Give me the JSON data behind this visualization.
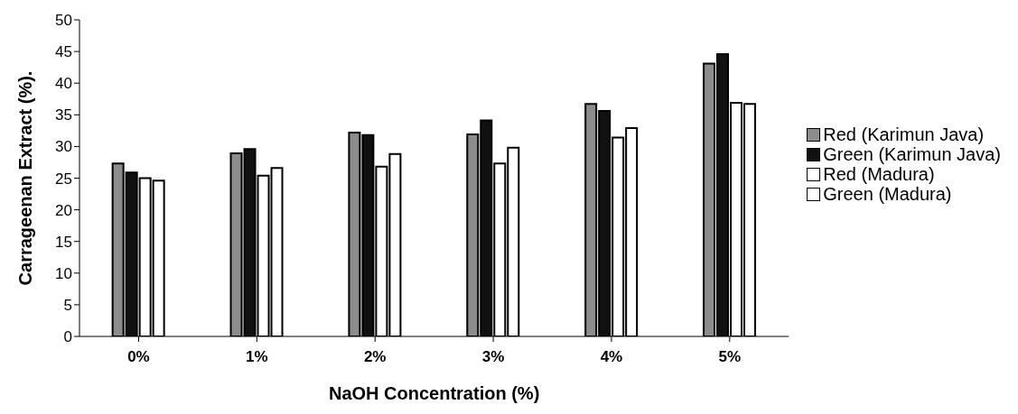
{
  "chart_data": {
    "type": "bar",
    "xlabel": "NaOH Concentration (%)",
    "ylabel": "Carrageenan Extract  (%).",
    "categories": [
      "0%",
      "1%",
      "2%",
      "3%",
      "4%",
      "5%"
    ],
    "series": [
      {
        "name": "Red (Karimun Java)",
        "color": "#8c8c8c",
        "values": [
          27.3,
          28.9,
          32.2,
          31.9,
          36.7,
          43.1
        ]
      },
      {
        "name": "Green (Karimun Java)",
        "color": "#111111",
        "values": [
          25.9,
          29.6,
          31.8,
          34.1,
          35.6,
          44.6
        ]
      },
      {
        "name": "Red (Madura)",
        "color": "#ffffff",
        "values": [
          25.0,
          25.4,
          26.8,
          27.3,
          31.4,
          36.9
        ]
      },
      {
        "name": "Green (Madura)",
        "color": "#ffffff",
        "values": [
          24.6,
          26.6,
          28.8,
          29.8,
          32.9,
          36.7
        ]
      }
    ],
    "ylim": [
      0,
      50
    ],
    "yticks": [
      0,
      5,
      10,
      15,
      20,
      25,
      30,
      35,
      40,
      45,
      50
    ],
    "grid": false,
    "legend": "right"
  }
}
